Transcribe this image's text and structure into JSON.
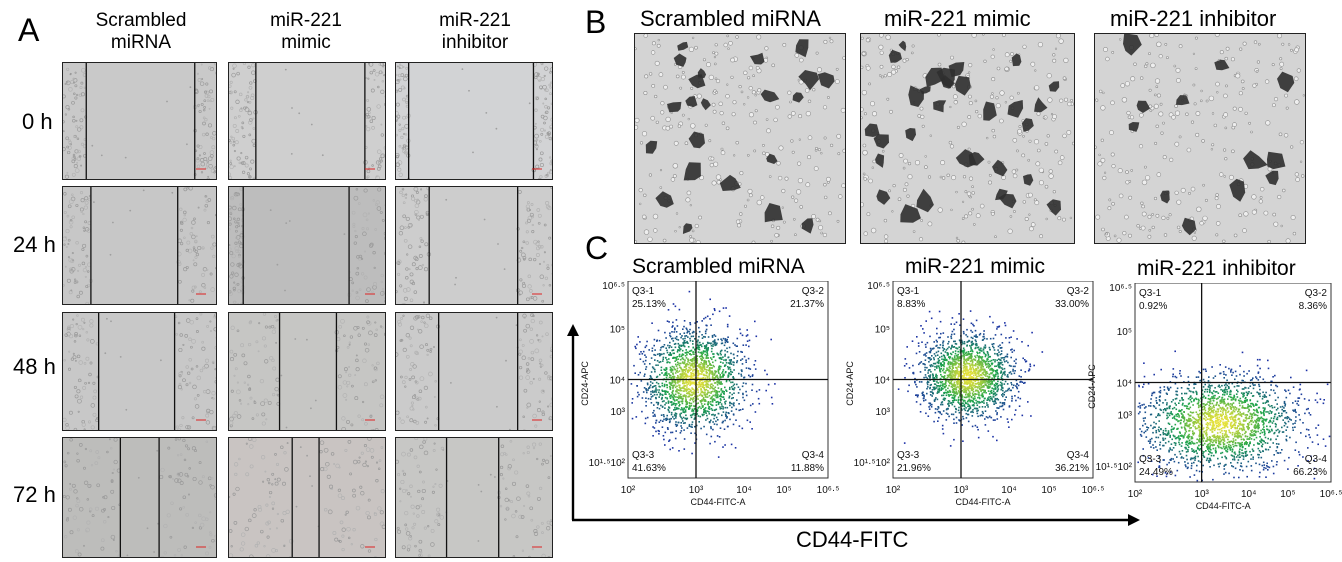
{
  "panel_a": {
    "letter": "A",
    "columns": [
      {
        "line1": "Scrambled",
        "line2": "miRNA"
      },
      {
        "line1": "miR-221",
        "line2": "mimic"
      },
      {
        "line1": "miR-221",
        "line2": "inhibitor"
      }
    ],
    "rows": [
      "0 h",
      "24 h",
      "48 h",
      "72 h"
    ]
  },
  "panel_b": {
    "letter": "B",
    "titles": [
      "Scrambled miRNA",
      "miR-221 mimic",
      "miR-221 inhibitor"
    ]
  },
  "panel_c": {
    "letter": "C",
    "x_axis_big": "CD44-FITC",
    "plots": [
      {
        "title": "Scrambled miRNA",
        "q1_label": "Q3-1",
        "q1_value": "25.13%",
        "q2_label": "Q3-2",
        "q2_value": "21.37%",
        "q3_label": "Q3-3",
        "q3_value": "41.63%",
        "q4_label": "Q3-4",
        "q4_value": "11.88%"
      },
      {
        "title": "miR-221 mimic",
        "q1_label": "Q3-1",
        "q1_value": "8.83%",
        "q2_label": "Q3-2",
        "q2_value": "33.00%",
        "q3_label": "Q3-3",
        "q3_value": "21.96%",
        "q4_label": "Q3-4",
        "q4_value": "36.21%"
      },
      {
        "title": "miR-221 inhibitor",
        "q1_label": "Q3-1",
        "q1_value": "0.92%",
        "q2_label": "Q3-2",
        "q2_value": "8.36%",
        "q3_label": "Q3-3",
        "q3_value": "24.49%",
        "q4_label": "Q3-4",
        "q4_value": "66.23%"
      }
    ],
    "axes": {
      "xlabel": "CD44-FITC-A",
      "ylabel": "CD24-APC",
      "x_ticks": [
        "10²",
        "10³",
        "10⁴",
        "10⁵",
        "10⁶·⁵"
      ],
      "y_ticks_a": [
        "10⁶·⁵",
        "10⁵",
        "10⁴",
        "10³",
        "10¹·⁵10²"
      ],
      "y_ticks_c": [
        "10⁶·⁵",
        "10⁵",
        "10⁴",
        "10³",
        "10¹·⁵10²"
      ]
    }
  },
  "colors": {
    "scatter_low": "#1c2fa8",
    "scatter_mid": "#1aa34a",
    "scatter_high": "#e8e23a",
    "cell_stain": "#2f2f2f"
  }
}
